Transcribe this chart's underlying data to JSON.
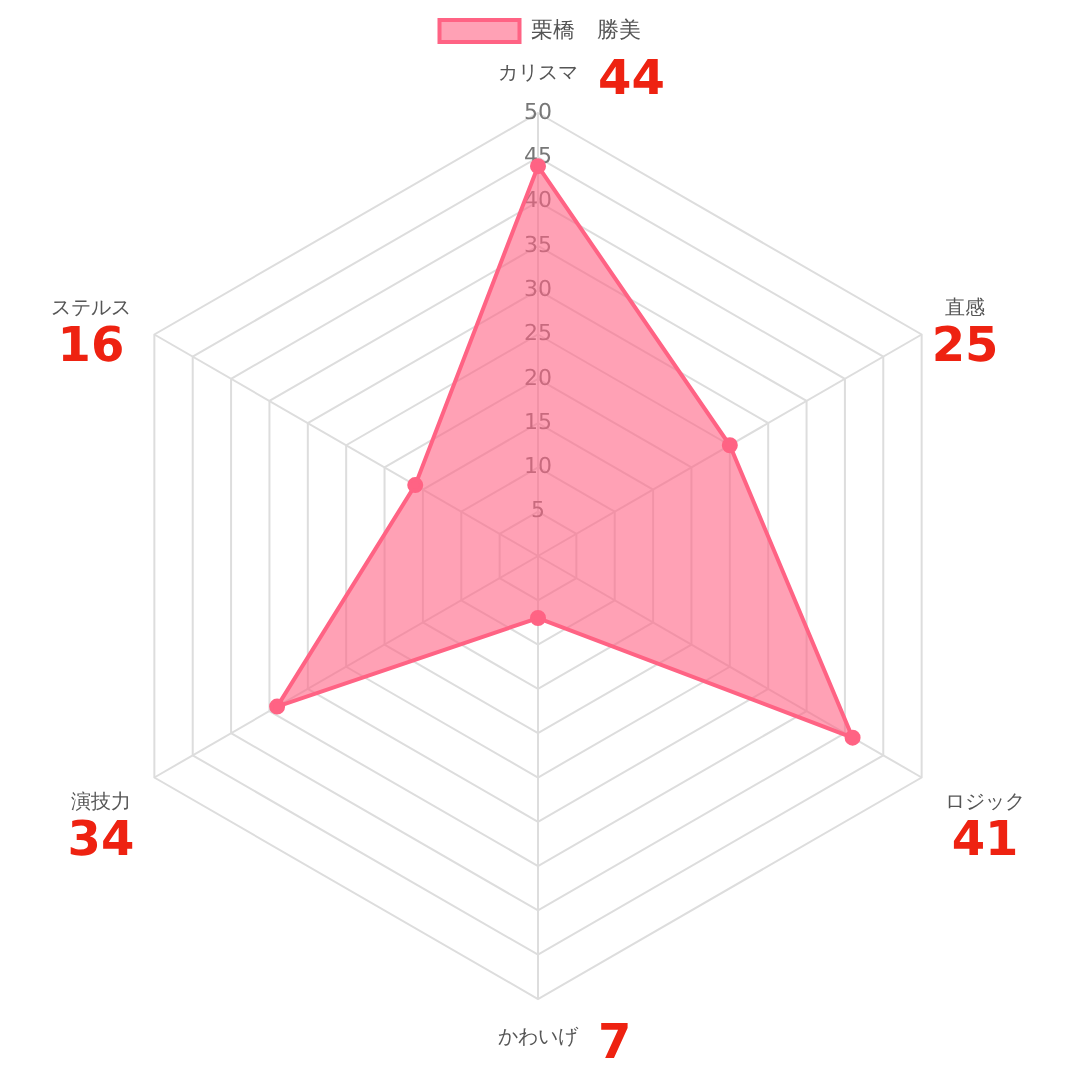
{
  "chart_data": {
    "type": "radar",
    "categories": [
      "カリスマ",
      "直感",
      "ロジック",
      "かわいげ",
      "演技力",
      "ステルス"
    ],
    "series": [
      {
        "name": "栗橋　勝美",
        "color": "#ff6384",
        "values": [
          44,
          25,
          41,
          7,
          34,
          16
        ]
      }
    ],
    "annotations": [
      "44",
      "25",
      "41",
      "7",
      "34",
      "16"
    ],
    "ylim": [
      0,
      50
    ],
    "yticks": [
      5,
      10,
      15,
      20,
      25,
      30,
      35,
      40,
      45,
      50
    ],
    "grid": true,
    "legend": "top",
    "marker": "circle"
  }
}
